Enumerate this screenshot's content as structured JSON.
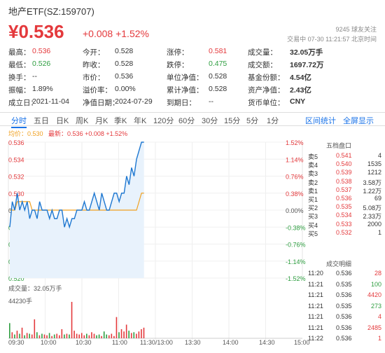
{
  "header": {
    "title": "地产ETF(SZ:159707)",
    "price": "¥0.536",
    "change": "+0.008 +1.52%",
    "followers": "9245 球友关注",
    "trade_time": "交易中 07-30 11:21:57 北京时间"
  },
  "quote": {
    "rows": [
      [
        {
          "l": "最高：",
          "v": "0.536",
          "c": "red"
        },
        {
          "l": "今开：",
          "v": "0.528",
          "c": "val"
        },
        {
          "l": "涨停：",
          "v": "0.581",
          "c": "red"
        },
        {
          "l": "成交量：",
          "v": "32.05万手",
          "c": "val bold"
        }
      ],
      [
        {
          "l": "最低：",
          "v": "0.526",
          "c": "green"
        },
        {
          "l": "昨收：",
          "v": "0.528",
          "c": "val"
        },
        {
          "l": "跌停：",
          "v": "0.475",
          "c": "green"
        },
        {
          "l": "成交额：",
          "v": "1697.72万",
          "c": "val bold"
        }
      ],
      [
        {
          "l": "换手：",
          "v": "--",
          "c": "val"
        },
        {
          "l": "市价：",
          "v": "0.536",
          "c": "val"
        },
        {
          "l": "单位净值：",
          "v": "0.528",
          "c": "val"
        },
        {
          "l": "基金份额：",
          "v": "4.54亿",
          "c": "val bold"
        }
      ],
      [
        {
          "l": "振幅：",
          "v": "1.89%",
          "c": "val"
        },
        {
          "l": "溢价率：",
          "v": "0.00%",
          "c": "val"
        },
        {
          "l": "累计净值：",
          "v": "0.528",
          "c": "val"
        },
        {
          "l": "资产净值：",
          "v": "2.43亿",
          "c": "val bold"
        }
      ],
      [
        {
          "l": "成立日：",
          "v": "2021-11-04",
          "c": "val"
        },
        {
          "l": "净值日期：",
          "v": "2024-07-29",
          "c": "val"
        },
        {
          "l": "到期日：",
          "v": "--",
          "c": "val"
        },
        {
          "l": "货币单位：",
          "v": "CNY",
          "c": "val bold"
        }
      ]
    ]
  },
  "tabs": {
    "items": [
      "分时",
      "五日",
      "日K",
      "周K",
      "月K",
      "季K",
      "年K",
      "120分",
      "60分",
      "30分",
      "15分",
      "5分",
      "1分"
    ],
    "active": 0,
    "right": [
      "区间统计",
      "全屏显示"
    ]
  },
  "legend": {
    "avg": "均价：0.530",
    "last": "最新：0.536 +0.008 +1.52%"
  },
  "chart_data": {
    "type": "line",
    "y_ticks_left": [
      "0.536",
      "0.534",
      "0.532",
      "0.530",
      "0.528",
      "0.526",
      "0.524",
      "0.522",
      "0.520"
    ],
    "y_ticks_right": [
      "1.52%",
      "1.14%",
      "0.76%",
      "0.38%",
      "0.00%",
      "-0.38%",
      "-0.76%",
      "-1.14%",
      "-1.52%"
    ],
    "x_ticks": [
      "09:30",
      "10:00",
      "10:30",
      "11:00",
      "11:30/13:00",
      "13:30",
      "14:00",
      "14:30",
      "15:00"
    ],
    "ylim": [
      0.52,
      0.536
    ],
    "prev_close": 0.528,
    "price_series": [
      0.526,
      0.529,
      0.528,
      0.53,
      0.528,
      0.529,
      0.528,
      0.529,
      0.527,
      0.528,
      0.528,
      0.527,
      0.529,
      0.528,
      0.528,
      0.528,
      0.527,
      0.528,
      0.527,
      0.527,
      0.528,
      0.528,
      0.526,
      0.527,
      0.526,
      0.527,
      0.527,
      0.528,
      0.528,
      0.528,
      0.529,
      0.528,
      0.528,
      0.529,
      0.53,
      0.529,
      0.528,
      0.53,
      0.529,
      0.528,
      0.528,
      0.529,
      0.53,
      0.53,
      0.529,
      0.53,
      0.53,
      0.532,
      0.531,
      0.533,
      0.532,
      0.534,
      0.535,
      0.536,
      0.536
    ],
    "avg_series": [
      0.528,
      0.528,
      0.528,
      0.529,
      0.529,
      0.529,
      0.529,
      0.529,
      0.529,
      0.528,
      0.528,
      0.528,
      0.528,
      0.528,
      0.528,
      0.528,
      0.528,
      0.528,
      0.528,
      0.528,
      0.528,
      0.528,
      0.528,
      0.528,
      0.528,
      0.528,
      0.528,
      0.528,
      0.528,
      0.528,
      0.528,
      0.528,
      0.528,
      0.528,
      0.528,
      0.528,
      0.528,
      0.528,
      0.528,
      0.528,
      0.528,
      0.528,
      0.528,
      0.528,
      0.528,
      0.528,
      0.528,
      0.528,
      0.528,
      0.528,
      0.528,
      0.528,
      0.529,
      0.53,
      0.53
    ],
    "volume_title": "成交量：32.05万手",
    "volume_max_label": "44230手",
    "volumes": [
      20,
      8,
      5,
      10,
      6,
      14,
      4,
      7,
      6,
      5,
      25,
      8,
      4,
      6,
      5,
      4,
      7,
      3,
      5,
      6,
      4,
      12,
      5,
      6,
      5,
      48,
      10,
      6,
      5,
      7,
      4,
      6,
      4,
      8,
      6,
      4,
      5,
      3,
      9,
      5,
      4,
      6,
      3,
      28,
      8,
      12,
      9,
      18,
      10,
      7,
      8,
      6,
      9,
      12,
      14
    ]
  },
  "orderbook": {
    "title": "五档盘口",
    "rows": [
      {
        "l": "卖5",
        "p": "0.541",
        "v": "4"
      },
      {
        "l": "卖4",
        "p": "0.540",
        "v": "1535"
      },
      {
        "l": "卖3",
        "p": "0.539",
        "v": "1212"
      },
      {
        "l": "卖2",
        "p": "0.538",
        "v": "3.58万"
      },
      {
        "l": "卖1",
        "p": "0.537",
        "v": "1.22万"
      },
      {
        "l": "买1",
        "p": "0.536",
        "v": "69"
      },
      {
        "l": "买2",
        "p": "0.535",
        "v": "5.08万"
      },
      {
        "l": "买3",
        "p": "0.534",
        "v": "2.33万"
      },
      {
        "l": "买4",
        "p": "0.533",
        "v": "2000"
      },
      {
        "l": "买5",
        "p": "0.532",
        "v": "1"
      }
    ]
  },
  "trades": {
    "title": "成交明细",
    "rows": [
      {
        "t": "11:20",
        "p": "0.536",
        "v": "28",
        "c": "red"
      },
      {
        "t": "11:21",
        "p": "0.535",
        "v": "100",
        "c": "green"
      },
      {
        "t": "11:21",
        "p": "0.536",
        "v": "4420",
        "c": "red"
      },
      {
        "t": "11:21",
        "p": "0.535",
        "v": "273",
        "c": "green"
      },
      {
        "t": "11:21",
        "p": "0.536",
        "v": "4",
        "c": "red"
      },
      {
        "t": "11:21",
        "p": "0.536",
        "v": "2485",
        "c": "red"
      },
      {
        "t": "11:22",
        "p": "0.536",
        "v": "1",
        "c": "red"
      }
    ]
  }
}
